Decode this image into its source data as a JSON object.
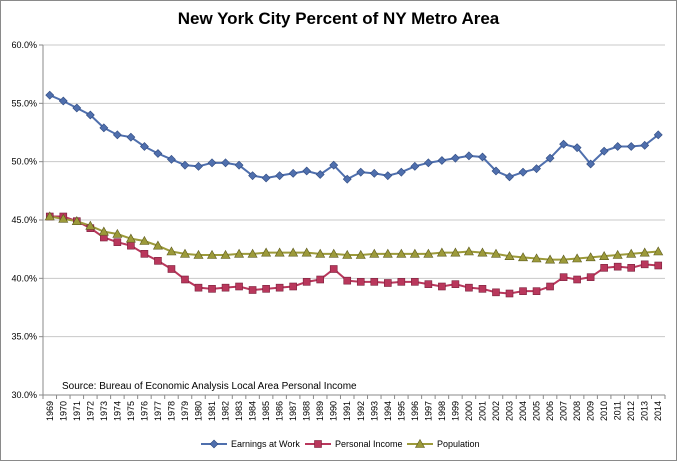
{
  "chart_data": {
    "type": "line",
    "title": "New York City Percent of NY Metro Area",
    "xlabel": "",
    "ylabel": "",
    "ylim": [
      30,
      60
    ],
    "yticks": [
      "30.0%",
      "35.0%",
      "40.0%",
      "45.0%",
      "50.0%",
      "55.0%",
      "60.0%"
    ],
    "grid": true,
    "legend_position": "bottom",
    "x": [
      "1969",
      "1970",
      "1971",
      "1972",
      "1973",
      "1974",
      "1975",
      "1976",
      "1977",
      "1978",
      "1979",
      "1980",
      "1981",
      "1982",
      "1983",
      "1984",
      "1985",
      "1986",
      "1987",
      "1988",
      "1989",
      "1990",
      "1991",
      "1992",
      "1993",
      "1994",
      "1995",
      "1996",
      "1997",
      "1998",
      "1999",
      "2000",
      "2001",
      "2002",
      "2003",
      "2004",
      "2005",
      "2006",
      "2007",
      "2008",
      "2009",
      "2010",
      "2011",
      "2012",
      "2013",
      "2014"
    ],
    "series": [
      {
        "name": "Earnings at Work",
        "color": "#4f6fad",
        "marker": "diamond",
        "values": [
          55.7,
          55.2,
          54.6,
          54.0,
          52.9,
          52.3,
          52.1,
          51.3,
          50.7,
          50.2,
          49.7,
          49.6,
          49.9,
          49.9,
          49.7,
          48.8,
          48.6,
          48.8,
          49.0,
          49.2,
          48.9,
          49.7,
          48.5,
          49.1,
          49.0,
          48.8,
          49.1,
          49.6,
          49.9,
          50.1,
          50.3,
          50.5,
          50.4,
          49.2,
          48.7,
          49.1,
          49.4,
          50.3,
          51.5,
          51.2,
          49.8,
          50.9,
          51.3,
          51.3,
          51.4,
          52.3
        ]
      },
      {
        "name": "Personal Income",
        "color": "#b9375c",
        "marker": "square",
        "values": [
          45.3,
          45.3,
          44.9,
          44.3,
          43.5,
          43.1,
          42.8,
          42.1,
          41.5,
          40.8,
          39.9,
          39.2,
          39.1,
          39.2,
          39.3,
          39.0,
          39.1,
          39.2,
          39.3,
          39.7,
          39.9,
          40.8,
          39.8,
          39.7,
          39.7,
          39.6,
          39.7,
          39.7,
          39.5,
          39.3,
          39.5,
          39.2,
          39.1,
          38.8,
          38.7,
          38.9,
          38.9,
          39.3,
          40.1,
          39.9,
          40.1,
          40.9,
          41.0,
          40.9,
          41.2,
          41.1
        ]
      },
      {
        "name": "Population",
        "color": "#9c9a3a",
        "marker": "triangle",
        "values": [
          45.3,
          45.1,
          44.9,
          44.5,
          44.0,
          43.8,
          43.4,
          43.2,
          42.8,
          42.3,
          42.1,
          42.0,
          42.0,
          42.0,
          42.1,
          42.1,
          42.2,
          42.2,
          42.2,
          42.2,
          42.1,
          42.1,
          42.0,
          42.0,
          42.1,
          42.1,
          42.1,
          42.1,
          42.1,
          42.2,
          42.2,
          42.3,
          42.2,
          42.1,
          41.9,
          41.8,
          41.7,
          41.6,
          41.6,
          41.7,
          41.8,
          41.9,
          42.0,
          42.1,
          42.2,
          42.3
        ]
      }
    ],
    "annotation": "Source:  Bureau of Economic Analysis Local Area Personal Income"
  }
}
